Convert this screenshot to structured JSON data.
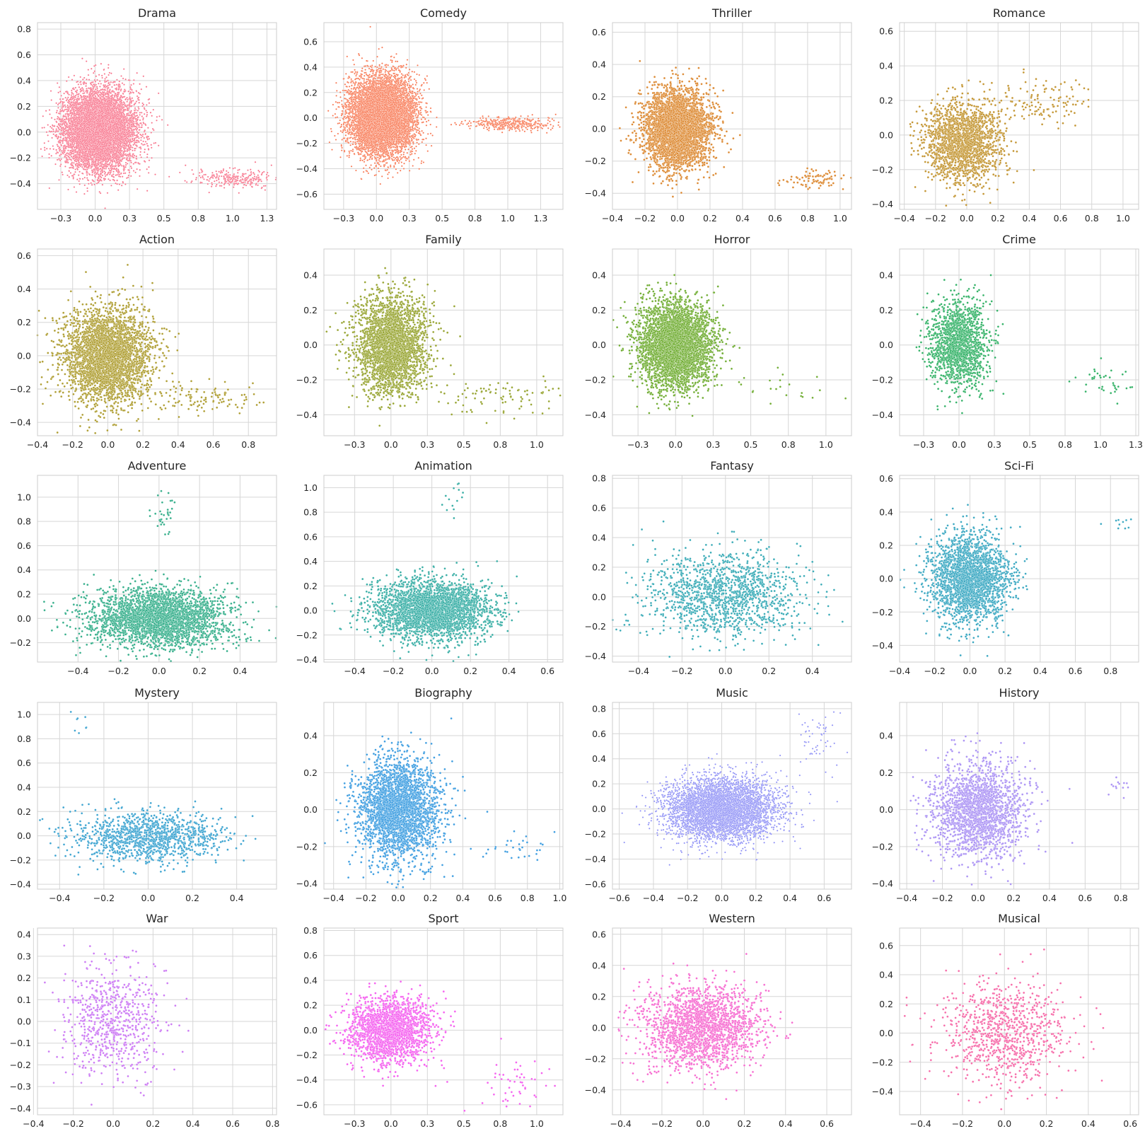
{
  "chart_data": [
    {
      "type": "scatter",
      "title": "Drama",
      "color": "#f77189",
      "n": 9000,
      "xlim": [
        -0.42,
        1.32
      ],
      "ylim": [
        -0.6,
        0.85
      ],
      "xticks": [
        -0.25,
        0.0,
        0.25,
        0.5,
        0.75,
        1.0,
        1.25
      ],
      "yticks": [
        -0.4,
        -0.2,
        0.0,
        0.2,
        0.4,
        0.6,
        0.8
      ],
      "clusters": [
        {
          "w": 0.97,
          "cx": 0.03,
          "cy": 0.02,
          "sx": 0.13,
          "sy": 0.15
        },
        {
          "w": 0.03,
          "cx": 1.0,
          "cy": -0.36,
          "sx": 0.15,
          "sy": 0.04
        }
      ]
    },
    {
      "type": "scatter",
      "title": "Comedy",
      "color": "#f7754f",
      "n": 9000,
      "xlim": [
        -0.4,
        1.42
      ],
      "ylim": [
        -0.72,
        0.75
      ],
      "xticks": [
        -0.25,
        0.0,
        0.25,
        0.5,
        0.75,
        1.0,
        1.25
      ],
      "yticks": [
        -0.6,
        -0.4,
        -0.2,
        0.0,
        0.2,
        0.4,
        0.6
      ],
      "clusters": [
        {
          "w": 0.96,
          "cx": 0.04,
          "cy": 0.02,
          "sx": 0.12,
          "sy": 0.15
        },
        {
          "w": 0.04,
          "cx": 1.02,
          "cy": -0.05,
          "sx": 0.16,
          "sy": 0.025
        }
      ]
    },
    {
      "type": "scatter",
      "title": "Thriller",
      "color": "#dc8932",
      "n": 4000,
      "xlim": [
        -0.4,
        1.07
      ],
      "ylim": [
        -0.5,
        0.66
      ],
      "xticks": [
        -0.4,
        -0.2,
        0.0,
        0.2,
        0.4,
        0.6,
        0.8,
        1.0
      ],
      "yticks": [
        -0.4,
        -0.2,
        0.0,
        0.2,
        0.4,
        0.6
      ],
      "clusters": [
        {
          "w": 0.985,
          "cx": 0.0,
          "cy": 0.0,
          "sx": 0.1,
          "sy": 0.12
        },
        {
          "w": 0.015,
          "cx": 0.85,
          "cy": -0.32,
          "sx": 0.1,
          "sy": 0.03
        }
      ]
    },
    {
      "type": "scatter",
      "title": "Romance",
      "color": "#c39532",
      "n": 2000,
      "xlim": [
        -0.43,
        1.1
      ],
      "ylim": [
        -0.43,
        0.65
      ],
      "xticks": [
        -0.4,
        -0.2,
        0.0,
        0.2,
        0.4,
        0.6,
        0.8,
        1.0
      ],
      "yticks": [
        -0.4,
        -0.2,
        0.0,
        0.2,
        0.4,
        0.6
      ],
      "clusters": [
        {
          "w": 0.93,
          "cx": -0.02,
          "cy": -0.04,
          "sx": 0.12,
          "sy": 0.11
        },
        {
          "w": 0.07,
          "cx": 0.45,
          "cy": 0.18,
          "sx": 0.2,
          "sy": 0.08
        }
      ]
    },
    {
      "type": "scatter",
      "title": "Action",
      "color": "#ae9d31",
      "n": 3500,
      "xlim": [
        -0.4,
        0.96
      ],
      "ylim": [
        -0.48,
        0.64
      ],
      "xticks": [
        -0.4,
        -0.2,
        0.0,
        0.2,
        0.4,
        0.6,
        0.8
      ],
      "yticks": [
        -0.4,
        -0.2,
        0.0,
        0.2,
        0.4,
        0.6
      ],
      "clusters": [
        {
          "w": 0.97,
          "cx": 0.0,
          "cy": 0.0,
          "sx": 0.12,
          "sy": 0.14
        },
        {
          "w": 0.03,
          "cx": 0.55,
          "cy": -0.25,
          "sx": 0.15,
          "sy": 0.05
        }
      ]
    },
    {
      "type": "scatter",
      "title": "Family",
      "color": "#97a431",
      "n": 3000,
      "xlim": [
        -0.46,
        1.18
      ],
      "ylim": [
        -0.52,
        0.55
      ],
      "xticks": [
        -0.25,
        0.0,
        0.25,
        0.5,
        0.75,
        1.0
      ],
      "yticks": [
        -0.4,
        -0.2,
        0.0,
        0.2,
        0.4
      ],
      "clusters": [
        {
          "w": 0.97,
          "cx": 0.0,
          "cy": 0.0,
          "sx": 0.12,
          "sy": 0.14
        },
        {
          "w": 0.03,
          "cx": 0.8,
          "cy": -0.3,
          "sx": 0.25,
          "sy": 0.05
        }
      ]
    },
    {
      "type": "scatter",
      "title": "Horror",
      "color": "#6fac31",
      "n": 4000,
      "xlim": [
        -0.42,
        1.17
      ],
      "ylim": [
        -0.52,
        0.55
      ],
      "xticks": [
        -0.25,
        0.0,
        0.25,
        0.5,
        0.75,
        1.0
      ],
      "yticks": [
        -0.4,
        -0.2,
        0.0,
        0.2,
        0.4
      ],
      "clusters": [
        {
          "w": 0.995,
          "cx": 0.0,
          "cy": 0.0,
          "sx": 0.12,
          "sy": 0.12
        },
        {
          "w": 0.005,
          "cx": 0.7,
          "cy": -0.25,
          "sx": 0.2,
          "sy": 0.05
        }
      ]
    },
    {
      "type": "scatter",
      "title": "Crime",
      "color": "#32b166",
      "n": 1600,
      "xlim": [
        -0.42,
        1.27
      ],
      "ylim": [
        -0.52,
        0.55
      ],
      "xticks": [
        -0.25,
        0.0,
        0.25,
        0.5,
        0.75,
        1.0,
        1.25
      ],
      "yticks": [
        -0.4,
        -0.2,
        0.0,
        0.2,
        0.4
      ],
      "clusters": [
        {
          "w": 0.985,
          "cx": 0.0,
          "cy": 0.0,
          "sx": 0.1,
          "sy": 0.12
        },
        {
          "w": 0.015,
          "cx": 1.05,
          "cy": -0.2,
          "sx": 0.1,
          "sy": 0.05
        }
      ]
    },
    {
      "type": "scatter",
      "title": "Adventure",
      "color": "#34ae8a",
      "n": 3000,
      "xlim": [
        -0.6,
        0.58
      ],
      "ylim": [
        -0.36,
        1.18
      ],
      "xticks": [
        -0.4,
        -0.2,
        0.0,
        0.2,
        0.4
      ],
      "yticks": [
        -0.2,
        0.0,
        0.2,
        0.4,
        0.6,
        0.8,
        1.0
      ],
      "clusters": [
        {
          "w": 0.99,
          "cx": 0.0,
          "cy": 0.0,
          "sx": 0.17,
          "sy": 0.12
        },
        {
          "w": 0.01,
          "cx": 0.02,
          "cy": 0.85,
          "sx": 0.03,
          "sy": 0.1
        }
      ]
    },
    {
      "type": "scatter",
      "title": "Animation",
      "color": "#36ada4",
      "n": 3000,
      "xlim": [
        -0.56,
        0.68
      ],
      "ylim": [
        -0.42,
        1.1
      ],
      "xticks": [
        -0.4,
        -0.2,
        0.0,
        0.2,
        0.4,
        0.6
      ],
      "yticks": [
        -0.4,
        -0.2,
        0.0,
        0.2,
        0.4,
        0.6,
        0.8,
        1.0
      ],
      "clusters": [
        {
          "w": 0.995,
          "cx": 0.0,
          "cy": 0.0,
          "sx": 0.15,
          "sy": 0.12
        },
        {
          "w": 0.005,
          "cx": 0.12,
          "cy": 0.9,
          "sx": 0.05,
          "sy": 0.08
        }
      ]
    },
    {
      "type": "scatter",
      "title": "Fantasy",
      "color": "#38aab6",
      "n": 1400,
      "xlim": [
        -0.52,
        0.58
      ],
      "ylim": [
        -0.44,
        0.82
      ],
      "xticks": [
        -0.4,
        -0.2,
        0.0,
        0.2,
        0.4
      ],
      "yticks": [
        -0.4,
        -0.2,
        0.0,
        0.2,
        0.4,
        0.6,
        0.8
      ],
      "clusters": [
        {
          "w": 1.0,
          "cx": 0.0,
          "cy": 0.02,
          "sx": 0.17,
          "sy": 0.14
        }
      ]
    },
    {
      "type": "scatter",
      "title": "Sci-Fi",
      "color": "#39a7c1",
      "n": 2500,
      "xlim": [
        -0.4,
        0.96
      ],
      "ylim": [
        -0.5,
        0.62
      ],
      "xticks": [
        -0.4,
        -0.2,
        0.0,
        0.2,
        0.4,
        0.6,
        0.8
      ],
      "yticks": [
        -0.4,
        -0.2,
        0.0,
        0.2,
        0.4,
        0.6
      ],
      "clusters": [
        {
          "w": 0.995,
          "cx": 0.0,
          "cy": 0.0,
          "sx": 0.11,
          "sy": 0.13
        },
        {
          "w": 0.005,
          "cx": 0.85,
          "cy": 0.35,
          "sx": 0.05,
          "sy": 0.03
        }
      ]
    },
    {
      "type": "scatter",
      "title": "Mystery",
      "color": "#3ba3d0",
      "n": 1200,
      "xlim": [
        -0.5,
        0.58
      ],
      "ylim": [
        -0.44,
        1.1
      ],
      "xticks": [
        -0.4,
        -0.2,
        0.0,
        0.2,
        0.4
      ],
      "yticks": [
        -0.4,
        -0.2,
        0.0,
        0.2,
        0.4,
        0.6,
        0.8,
        1.0
      ],
      "clusters": [
        {
          "w": 0.99,
          "cx": 0.0,
          "cy": 0.0,
          "sx": 0.17,
          "sy": 0.1
        },
        {
          "w": 0.01,
          "cx": -0.3,
          "cy": 0.92,
          "sx": 0.02,
          "sy": 0.05
        }
      ]
    },
    {
      "type": "scatter",
      "title": "Biography",
      "color": "#3d9de0",
      "n": 3000,
      "xlim": [
        -0.46,
        1.02
      ],
      "ylim": [
        -0.43,
        0.58
      ],
      "xticks": [
        -0.4,
        -0.2,
        0.0,
        0.2,
        0.4,
        0.6,
        0.8,
        1.0
      ],
      "yticks": [
        -0.4,
        -0.2,
        0.0,
        0.2,
        0.4
      ],
      "clusters": [
        {
          "w": 0.99,
          "cx": 0.0,
          "cy": 0.0,
          "sx": 0.12,
          "sy": 0.13
        },
        {
          "w": 0.01,
          "cx": 0.75,
          "cy": -0.2,
          "sx": 0.15,
          "sy": 0.06
        }
      ]
    },
    {
      "type": "scatter",
      "title": "Music",
      "color": "#8c8ef5",
      "n": 5000,
      "xlim": [
        -0.64,
        0.76
      ],
      "ylim": [
        -0.64,
        0.85
      ],
      "xticks": [
        -0.6,
        -0.4,
        -0.2,
        0.0,
        0.2,
        0.4,
        0.6
      ],
      "yticks": [
        -0.6,
        -0.4,
        -0.2,
        0.0,
        0.2,
        0.4,
        0.6,
        0.8
      ],
      "clusters": [
        {
          "w": 0.99,
          "cx": 0.0,
          "cy": 0.0,
          "sx": 0.16,
          "sy": 0.12
        },
        {
          "w": 0.01,
          "cx": 0.55,
          "cy": 0.55,
          "sx": 0.06,
          "sy": 0.1
        }
      ]
    },
    {
      "type": "scatter",
      "title": "History",
      "color": "#ab93f4",
      "n": 2000,
      "xlim": [
        -0.44,
        0.9
      ],
      "ylim": [
        -0.43,
        0.58
      ],
      "xticks": [
        -0.4,
        -0.2,
        0.0,
        0.2,
        0.4,
        0.6,
        0.8
      ],
      "yticks": [
        -0.4,
        -0.2,
        0.0,
        0.2,
        0.4
      ],
      "clusters": [
        {
          "w": 0.995,
          "cx": 0.0,
          "cy": 0.0,
          "sx": 0.13,
          "sy": 0.13
        },
        {
          "w": 0.005,
          "cx": 0.78,
          "cy": 0.12,
          "sx": 0.06,
          "sy": 0.03
        }
      ]
    },
    {
      "type": "scatter",
      "title": "War",
      "color": "#cc7af4",
      "n": 700,
      "xlim": [
        -0.38,
        0.82
      ],
      "ylim": [
        -0.43,
        0.43
      ],
      "xticks": [
        -0.4,
        -0.2,
        0.0,
        0.2,
        0.4,
        0.6,
        0.8
      ],
      "yticks": [
        -0.4,
        -0.3,
        -0.2,
        -0.1,
        0.0,
        0.1,
        0.2,
        0.3,
        0.4
      ],
      "clusters": [
        {
          "w": 1.0,
          "cx": 0.0,
          "cy": 0.0,
          "sx": 0.13,
          "sy": 0.13
        }
      ]
    },
    {
      "type": "scatter",
      "title": "Sport",
      "color": "#f45fef",
      "n": 2000,
      "xlim": [
        -0.46,
        1.18
      ],
      "ylim": [
        -0.68,
        0.82
      ],
      "xticks": [
        -0.25,
        0.0,
        0.25,
        0.5,
        0.75,
        1.0
      ],
      "yticks": [
        -0.6,
        -0.4,
        -0.2,
        0.0,
        0.2,
        0.4,
        0.6,
        0.8
      ],
      "clusters": [
        {
          "w": 0.97,
          "cx": 0.0,
          "cy": 0.0,
          "sx": 0.14,
          "sy": 0.13
        },
        {
          "w": 0.03,
          "cx": 0.85,
          "cy": -0.45,
          "sx": 0.15,
          "sy": 0.1
        }
      ]
    },
    {
      "type": "scatter",
      "title": "Western",
      "color": "#f66bd0",
      "n": 2000,
      "xlim": [
        -0.44,
        0.72
      ],
      "ylim": [
        -0.56,
        0.64
      ],
      "xticks": [
        -0.4,
        -0.2,
        0.0,
        0.2,
        0.4,
        0.6
      ],
      "yticks": [
        -0.4,
        -0.2,
        0.0,
        0.2,
        0.4,
        0.6
      ],
      "clusters": [
        {
          "w": 1.0,
          "cx": 0.0,
          "cy": 0.0,
          "sx": 0.14,
          "sy": 0.13
        }
      ]
    },
    {
      "type": "scatter",
      "title": "Musical",
      "color": "#f66aa8",
      "n": 900,
      "xlim": [
        -0.5,
        0.64
      ],
      "ylim": [
        -0.56,
        0.72
      ],
      "xticks": [
        -0.4,
        -0.2,
        0.0,
        0.2,
        0.4,
        0.6
      ],
      "yticks": [
        -0.4,
        -0.2,
        0.0,
        0.2,
        0.4,
        0.6
      ],
      "clusters": [
        {
          "w": 1.0,
          "cx": 0.0,
          "cy": 0.0,
          "sx": 0.15,
          "sy": 0.17
        }
      ]
    }
  ]
}
